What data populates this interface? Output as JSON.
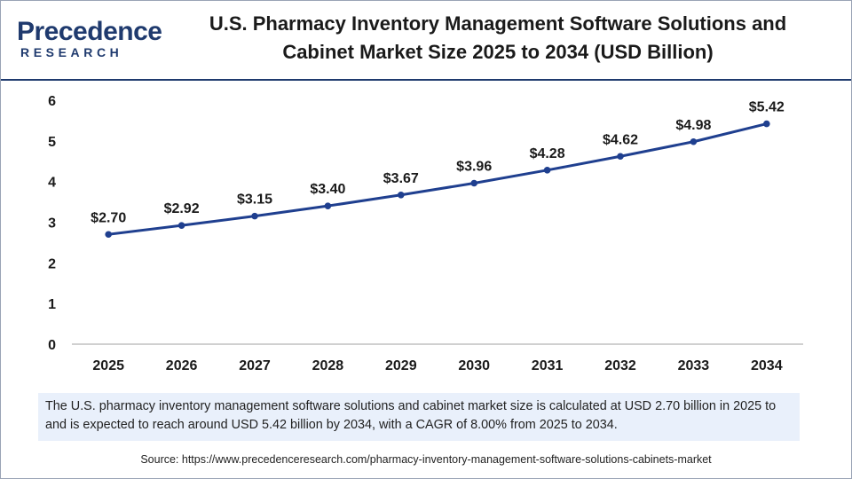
{
  "brand": {
    "name_top": "Precedence",
    "name_bottom": "RESEARCH"
  },
  "colors": {
    "line": "#1f3f8f",
    "marker": "#1f3f8f",
    "description_bg": "#e9f0fb",
    "brand": "#1f3a6e"
  },
  "chart_data": {
    "type": "line",
    "title": "U.S. Pharmacy Inventory Management Software Solutions and Cabinet Market Size 2025 to 2034 (USD Billion)",
    "title_lines": [
      "U.S. Pharmacy Inventory Management Software Solutions and",
      "Cabinet Market Size 2025 to 2034 (USD Billion)"
    ],
    "xlabel": "",
    "ylabel": "",
    "categories": [
      "2025",
      "2026",
      "2027",
      "2028",
      "2029",
      "2030",
      "2031",
      "2032",
      "2033",
      "2034"
    ],
    "values": [
      2.7,
      2.92,
      3.15,
      3.4,
      3.67,
      3.96,
      4.28,
      4.62,
      4.98,
      5.42
    ],
    "data_labels": [
      "$2.70",
      "$2.92",
      "$3.15",
      "$3.40",
      "$3.67",
      "$3.96",
      "$4.28",
      "$4.62",
      "$4.98",
      "$5.42"
    ],
    "ylim": [
      0,
      6
    ],
    "yticks": [
      "0",
      "1",
      "2",
      "3",
      "4",
      "5",
      "6"
    ],
    "grid": false,
    "legend": "none"
  },
  "description": "The U.S. pharmacy inventory management software solutions and cabinet market size is calculated at USD 2.70 billion in 2025 to and is expected to reach around USD 5.42 billion by 2034, with a CAGR of 8.00% from 2025 to 2034.",
  "source": "Source: https://www.precedenceresearch.com/pharmacy-inventory-management-software-solutions-cabinets-market"
}
